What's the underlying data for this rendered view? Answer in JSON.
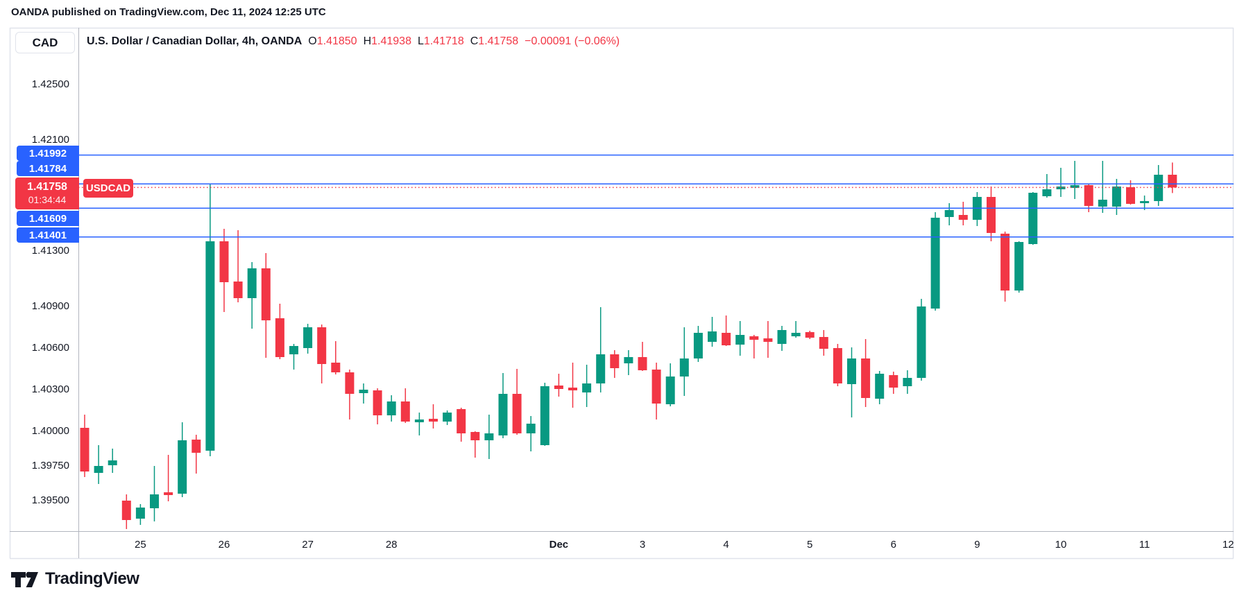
{
  "attribution": "OANDA published on TradingView.com, Dec 11, 2024 12:25 UTC",
  "header": {
    "symbol_button": "CAD",
    "title": "U.S. Dollar / Canadian Dollar, 4h, OANDA",
    "ohlc": [
      {
        "key": "O",
        "value": "1.41850"
      },
      {
        "key": "H",
        "value": "1.41938"
      },
      {
        "key": "L",
        "value": "1.41718"
      },
      {
        "key": "C",
        "value": "1.41758"
      }
    ],
    "change": "−0.00091 (−0.06%)"
  },
  "current_price_badge": {
    "price": "1.41758",
    "countdown": "01:34:44",
    "tag": "USDCAD",
    "color": "#f23645"
  },
  "levels": [
    {
      "label": "1.41992",
      "price": 1.41992,
      "style": "solid",
      "color": "#2962ff"
    },
    {
      "label": "1.41784",
      "price": 1.41784,
      "style": "solid",
      "color": "#2962ff"
    },
    {
      "label": "1.41758",
      "price": 1.41758,
      "style": "dotted",
      "color": "#f23645"
    },
    {
      "label": "1.41609",
      "price": 1.41609,
      "style": "solid",
      "color": "#2962ff"
    },
    {
      "label": "1.41401",
      "price": 1.41401,
      "style": "solid",
      "color": "#2962ff"
    }
  ],
  "price_axis": [
    {
      "label": "1.42500",
      "price": 1.425
    },
    {
      "label": "1.42100",
      "price": 1.421
    },
    {
      "label": "1.41300",
      "price": 1.413
    },
    {
      "label": "1.40900",
      "price": 1.409
    },
    {
      "label": "1.40600",
      "price": 1.406
    },
    {
      "label": "1.40300",
      "price": 1.403
    },
    {
      "label": "1.40000",
      "price": 1.4
    },
    {
      "label": "1.39750",
      "price": 1.3975
    },
    {
      "label": "1.39500",
      "price": 1.395
    }
  ],
  "time_axis": [
    {
      "label": "25",
      "index": 4,
      "emphasis": false
    },
    {
      "label": "26",
      "index": 10,
      "emphasis": false
    },
    {
      "label": "27",
      "index": 16,
      "emphasis": false
    },
    {
      "label": "28",
      "index": 22,
      "emphasis": false
    },
    {
      "label": "Dec",
      "index": 34,
      "emphasis": true
    },
    {
      "label": "3",
      "index": 40,
      "emphasis": false
    },
    {
      "label": "4",
      "index": 46,
      "emphasis": false
    },
    {
      "label": "5",
      "index": 52,
      "emphasis": false
    },
    {
      "label": "6",
      "index": 58,
      "emphasis": false
    },
    {
      "label": "9",
      "index": 64,
      "emphasis": false
    },
    {
      "label": "10",
      "index": 70,
      "emphasis": false
    },
    {
      "label": "11",
      "index": 76,
      "emphasis": false
    },
    {
      "label": "12",
      "index": 82,
      "emphasis": false
    }
  ],
  "logo": {
    "text": "TradingView"
  },
  "chart_data": {
    "type": "candlestick",
    "symbol": "USDCAD",
    "exchange": "OANDA",
    "timeframe": "4h",
    "title": "U.S. Dollar / Canadian Dollar, 4h, OANDA",
    "up_color": "#089981",
    "down_color": "#f23645",
    "current_price": 1.41758,
    "candle_countdown": "01:34:44",
    "visible_price_range": [
      1.3928,
      1.429
    ],
    "horizontal_levels": [
      1.41992,
      1.41784,
      1.41758,
      1.41609,
      1.41401
    ],
    "candles_ohlc": [
      [
        1.40025,
        1.4012,
        1.3967,
        1.3971
      ],
      [
        1.397,
        1.399,
        1.3962,
        1.3975
      ],
      [
        1.39755,
        1.39875,
        1.397,
        1.3979
      ],
      [
        1.395,
        1.39545,
        1.39295,
        1.3936
      ],
      [
        1.3937,
        1.39475,
        1.39325,
        1.3945
      ],
      [
        1.39445,
        1.3975,
        1.3935,
        1.39545
      ],
      [
        1.3956,
        1.3983,
        1.39495,
        1.3954
      ],
      [
        1.3955,
        1.40065,
        1.39525,
        1.39935
      ],
      [
        1.3994,
        1.39975,
        1.39695,
        1.39845
      ],
      [
        1.3986,
        1.4178,
        1.3982,
        1.4137
      ],
      [
        1.4137,
        1.4146,
        1.4086,
        1.41075
      ],
      [
        1.4108,
        1.4145,
        1.4093,
        1.4096
      ],
      [
        1.4096,
        1.4122,
        1.4074,
        1.41175
      ],
      [
        1.41175,
        1.41285,
        1.4053,
        1.408
      ],
      [
        1.40815,
        1.4092,
        1.4052,
        1.40535
      ],
      [
        1.40555,
        1.4063,
        1.40445,
        1.40615
      ],
      [
        1.406,
        1.40775,
        1.4056,
        1.4075
      ],
      [
        1.4075,
        1.4077,
        1.40345,
        1.40485
      ],
      [
        1.40495,
        1.4065,
        1.4041,
        1.40425
      ],
      [
        1.40425,
        1.40445,
        1.40085,
        1.4027
      ],
      [
        1.40275,
        1.40345,
        1.402,
        1.403
      ],
      [
        1.40295,
        1.4031,
        1.4005,
        1.40115
      ],
      [
        1.40115,
        1.4026,
        1.4007,
        1.40215
      ],
      [
        1.40215,
        1.4031,
        1.4006,
        1.4007
      ],
      [
        1.40065,
        1.40135,
        1.3997,
        1.40085
      ],
      [
        1.4009,
        1.40195,
        1.4002,
        1.4007
      ],
      [
        1.4007,
        1.4015,
        1.40045,
        1.40135
      ],
      [
        1.4016,
        1.4017,
        1.39925,
        1.39985
      ],
      [
        1.39995,
        1.4,
        1.3981,
        1.39935
      ],
      [
        1.39935,
        1.4012,
        1.398,
        1.39985
      ],
      [
        1.3997,
        1.4042,
        1.3995,
        1.4027
      ],
      [
        1.4027,
        1.4045,
        1.39975,
        1.39985
      ],
      [
        1.39985,
        1.4011,
        1.39855,
        1.40055
      ],
      [
        1.399,
        1.4035,
        1.39895,
        1.40325
      ],
      [
        1.4033,
        1.40415,
        1.4025,
        1.40305
      ],
      [
        1.40315,
        1.40495,
        1.4017,
        1.40295
      ],
      [
        1.4028,
        1.4048,
        1.40175,
        1.40345
      ],
      [
        1.40345,
        1.40895,
        1.4028,
        1.40555
      ],
      [
        1.40555,
        1.40585,
        1.40385,
        1.40455
      ],
      [
        1.4049,
        1.40585,
        1.40405,
        1.40535
      ],
      [
        1.40535,
        1.40645,
        1.40435,
        1.4044
      ],
      [
        1.40445,
        1.40495,
        1.40085,
        1.402
      ],
      [
        1.40195,
        1.4049,
        1.4018,
        1.40395
      ],
      [
        1.40395,
        1.4075,
        1.40255,
        1.40525
      ],
      [
        1.40525,
        1.4076,
        1.405,
        1.4071
      ],
      [
        1.40645,
        1.40825,
        1.4061,
        1.4072
      ],
      [
        1.4071,
        1.40835,
        1.40615,
        1.4062
      ],
      [
        1.40625,
        1.40795,
        1.40545,
        1.40695
      ],
      [
        1.40685,
        1.40695,
        1.40525,
        1.4066
      ],
      [
        1.4067,
        1.40795,
        1.4053,
        1.40645
      ],
      [
        1.4063,
        1.4076,
        1.4058,
        1.4073
      ],
      [
        1.40685,
        1.40795,
        1.40675,
        1.4071
      ],
      [
        1.40715,
        1.40725,
        1.40665,
        1.40675
      ],
      [
        1.4068,
        1.4073,
        1.40545,
        1.40595
      ],
      [
        1.406,
        1.4063,
        1.40325,
        1.40345
      ],
      [
        1.4034,
        1.40605,
        1.401,
        1.40525
      ],
      [
        1.40525,
        1.40665,
        1.40175,
        1.4024
      ],
      [
        1.40235,
        1.40435,
        1.40195,
        1.40415
      ],
      [
        1.40405,
        1.4043,
        1.4027,
        1.40315
      ],
      [
        1.40325,
        1.4044,
        1.4027,
        1.40385
      ],
      [
        1.40385,
        1.40955,
        1.40365,
        1.409
      ],
      [
        1.40885,
        1.4158,
        1.4087,
        1.4154
      ],
      [
        1.41545,
        1.41645,
        1.41485,
        1.41595
      ],
      [
        1.4156,
        1.41655,
        1.41485,
        1.41525
      ],
      [
        1.41525,
        1.41725,
        1.4148,
        1.4169
      ],
      [
        1.4169,
        1.41765,
        1.4137,
        1.4143
      ],
      [
        1.41425,
        1.4144,
        1.40935,
        1.41015
      ],
      [
        1.41015,
        1.4137,
        1.41,
        1.41365
      ],
      [
        1.4135,
        1.41725,
        1.41345,
        1.4172
      ],
      [
        1.41695,
        1.41855,
        1.41685,
        1.41745
      ],
      [
        1.41745,
        1.419,
        1.4169,
        1.41765
      ],
      [
        1.41755,
        1.4195,
        1.41675,
        1.41775
      ],
      [
        1.41775,
        1.4178,
        1.4158,
        1.41625
      ],
      [
        1.4162,
        1.4195,
        1.41575,
        1.4167
      ],
      [
        1.4162,
        1.4182,
        1.4156,
        1.41765
      ],
      [
        1.4176,
        1.4181,
        1.41635,
        1.4164
      ],
      [
        1.41645,
        1.417,
        1.41595,
        1.4166
      ],
      [
        1.4166,
        1.4192,
        1.41625,
        1.4185
      ],
      [
        1.4185,
        1.41938,
        1.41718,
        1.41758
      ]
    ]
  }
}
